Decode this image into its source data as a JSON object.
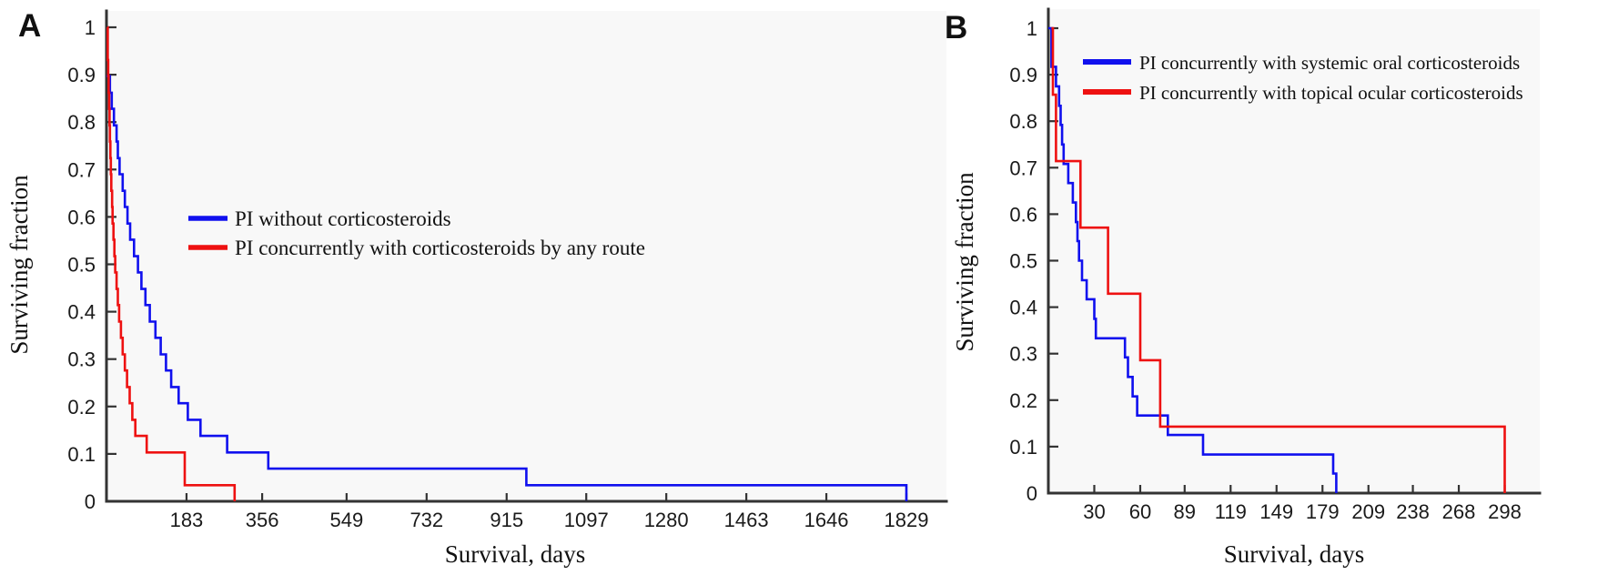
{
  "figure": {
    "description": "Two-panel Kaplan-Meier survival figure",
    "colors": {
      "blue": "#1010ee",
      "red": "#ee1111",
      "axis": "#333333",
      "text": "#1a1a1a",
      "plot_bg": "#f8f8f8",
      "background": "#ffffff"
    }
  },
  "chart_data": [
    {
      "id": "A",
      "panel_label": "A",
      "type": "line",
      "subtype": "kaplan-meier-step",
      "xlabel": "Survival, days",
      "ylabel": "Surviving fraction",
      "xlim": [
        0,
        1920
      ],
      "ylim": [
        0,
        1
      ],
      "grid": false,
      "legend_position": "center-left-of-plot",
      "xticks": [
        183,
        356,
        549,
        732,
        915,
        1097,
        1280,
        1463,
        1646,
        1829
      ],
      "yticks": [
        0,
        0.1,
        0.2,
        0.3,
        0.4,
        0.5,
        0.6,
        0.7,
        0.8,
        0.9,
        1
      ],
      "ytick_labels": [
        "0",
        "0.1",
        "0.2",
        "0.3",
        "0.4",
        "0.5",
        "0.6",
        "0.7",
        "0.8",
        "0.9",
        "1"
      ],
      "series": [
        {
          "name": "PI without corticosteroids",
          "color": "#1010ee",
          "points": [
            [
              0,
              0.897
            ],
            [
              8,
              0.862
            ],
            [
              12,
              0.828
            ],
            [
              17,
              0.793
            ],
            [
              23,
              0.759
            ],
            [
              26,
              0.724
            ],
            [
              30,
              0.69
            ],
            [
              37,
              0.655
            ],
            [
              42,
              0.621
            ],
            [
              48,
              0.586
            ],
            [
              54,
              0.552
            ],
            [
              63,
              0.517
            ],
            [
              72,
              0.483
            ],
            [
              80,
              0.448
            ],
            [
              89,
              0.414
            ],
            [
              99,
              0.379
            ],
            [
              112,
              0.345
            ],
            [
              124,
              0.31
            ],
            [
              136,
              0.276
            ],
            [
              148,
              0.241
            ],
            [
              165,
              0.207
            ],
            [
              186,
              0.172
            ],
            [
              215,
              0.138
            ],
            [
              276,
              0.103
            ],
            [
              370,
              0.069
            ],
            [
              960,
              0.034
            ],
            [
              1829,
              0
            ]
          ]
        },
        {
          "name": "PI concurrently with corticosteroids by any route",
          "color": "#ee1111",
          "points": [
            [
              2,
              1.0
            ],
            [
              3,
              0.931
            ],
            [
              4,
              0.897
            ],
            [
              5,
              0.862
            ],
            [
              6,
              0.828
            ],
            [
              7,
              0.793
            ],
            [
              8,
              0.759
            ],
            [
              9,
              0.724
            ],
            [
              10,
              0.69
            ],
            [
              11,
              0.655
            ],
            [
              13,
              0.621
            ],
            [
              14,
              0.586
            ],
            [
              16,
              0.552
            ],
            [
              18,
              0.517
            ],
            [
              20,
              0.483
            ],
            [
              23,
              0.448
            ],
            [
              26,
              0.414
            ],
            [
              29,
              0.379
            ],
            [
              33,
              0.345
            ],
            [
              37,
              0.31
            ],
            [
              42,
              0.276
            ],
            [
              47,
              0.241
            ],
            [
              53,
              0.207
            ],
            [
              59,
              0.172
            ],
            [
              66,
              0.138
            ],
            [
              92,
              0.103
            ],
            [
              179,
              0.034
            ],
            [
              293,
              0
            ]
          ]
        }
      ]
    },
    {
      "id": "B",
      "panel_label": "B",
      "type": "line",
      "subtype": "kaplan-meier-step",
      "xlabel": "Survival, days",
      "ylabel": "Surviving fraction",
      "xlim": [
        0,
        321
      ],
      "ylim": [
        0,
        1
      ],
      "grid": false,
      "legend_position": "upper-right",
      "xticks": [
        30,
        60,
        89,
        119,
        149,
        179,
        209,
        238,
        268,
        298
      ],
      "yticks": [
        0,
        0.1,
        0.2,
        0.3,
        0.4,
        0.5,
        0.6,
        0.7,
        0.8,
        0.9,
        1
      ],
      "ytick_labels": [
        "0",
        "0.1",
        "0.2",
        "0.3",
        "0.4",
        "0.5",
        "0.6",
        "0.7",
        "0.8",
        "0.9",
        "1"
      ],
      "series": [
        {
          "name": "PI concurrently with systemic oral corticosteroids",
          "color": "#1010ee",
          "points": [
            [
              0,
              1.0
            ],
            [
              2,
              0.917
            ],
            [
              5,
              0.875
            ],
            [
              7,
              0.833
            ],
            [
              8,
              0.792
            ],
            [
              9,
              0.75
            ],
            [
              10,
              0.708
            ],
            [
              13,
              0.667
            ],
            [
              16,
              0.625
            ],
            [
              18,
              0.583
            ],
            [
              19,
              0.542
            ],
            [
              20,
              0.5
            ],
            [
              22,
              0.458
            ],
            [
              25,
              0.417
            ],
            [
              30,
              0.375
            ],
            [
              31,
              0.333
            ],
            [
              50,
              0.292
            ],
            [
              52,
              0.25
            ],
            [
              55,
              0.208
            ],
            [
              58,
              0.167
            ],
            [
              78,
              0.125
            ],
            [
              101,
              0.083
            ],
            [
              186,
              0.042
            ],
            [
              188,
              0
            ]
          ]
        },
        {
          "name": "PI concurrently with topical ocular corticosteroids",
          "color": "#ee1111",
          "points": [
            [
              2,
              1.0
            ],
            [
              3,
              0.857
            ],
            [
              5,
              0.714
            ],
            [
              21,
              0.571
            ],
            [
              39,
              0.429
            ],
            [
              60,
              0.286
            ],
            [
              73,
              0.143
            ],
            [
              298,
              0
            ]
          ]
        }
      ]
    }
  ]
}
